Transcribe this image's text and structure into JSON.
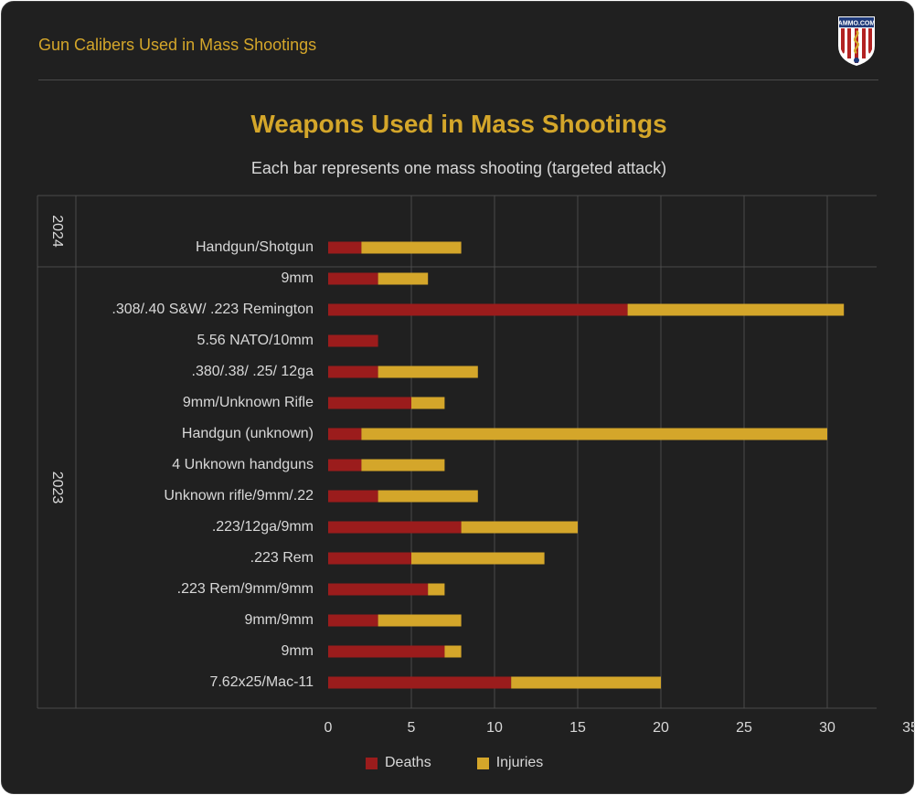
{
  "header": {
    "title": "Gun Calibers Used in Mass Shootings",
    "logo_text": "AMMO.COM"
  },
  "colors": {
    "background": "#202020",
    "accent": "#d4a62a",
    "deaths": "#9b1c1c",
    "injuries": "#d4a62a",
    "grid": "#4a4a4a",
    "text": "#d8d8d8"
  },
  "chart_data": {
    "type": "bar",
    "orientation": "horizontal",
    "stacked": true,
    "title": "Weapons Used in Mass Shootings",
    "subtitle": "Each bar represents one mass shooting (targeted attack)",
    "xlim": [
      0,
      35
    ],
    "xticks": [
      0,
      5,
      10,
      15,
      20,
      25,
      30,
      35
    ],
    "grid": true,
    "legend_position": "bottom-center",
    "groups": [
      {
        "label": "2024",
        "count": 1
      },
      {
        "label": "2023",
        "count": 14
      }
    ],
    "categories": [
      "Handgun/Shotgun",
      "9mm",
      ".308/.40 S&W/ .223 Remington",
      "5.56 NATO/10mm",
      ".380/.38/ .25/ 12ga",
      "9mm/Unknown Rifle",
      "Handgun (unknown)",
      "4 Unknown handguns",
      "Unknown rifle/9mm/.22",
      ".223/12ga/9mm",
      ".223 Rem",
      ".223 Rem/9mm/9mm",
      "9mm/9mm",
      "9mm",
      "7.62x25/Mac-11"
    ],
    "series": [
      {
        "name": "Deaths",
        "values": [
          2,
          3,
          18,
          3,
          3,
          5,
          2,
          2,
          3,
          8,
          5,
          6,
          3,
          7,
          11
        ]
      },
      {
        "name": "Injuries",
        "values": [
          6,
          3,
          13,
          0,
          6,
          2,
          28,
          5,
          6,
          7,
          8,
          1,
          5,
          1,
          9
        ]
      }
    ]
  }
}
